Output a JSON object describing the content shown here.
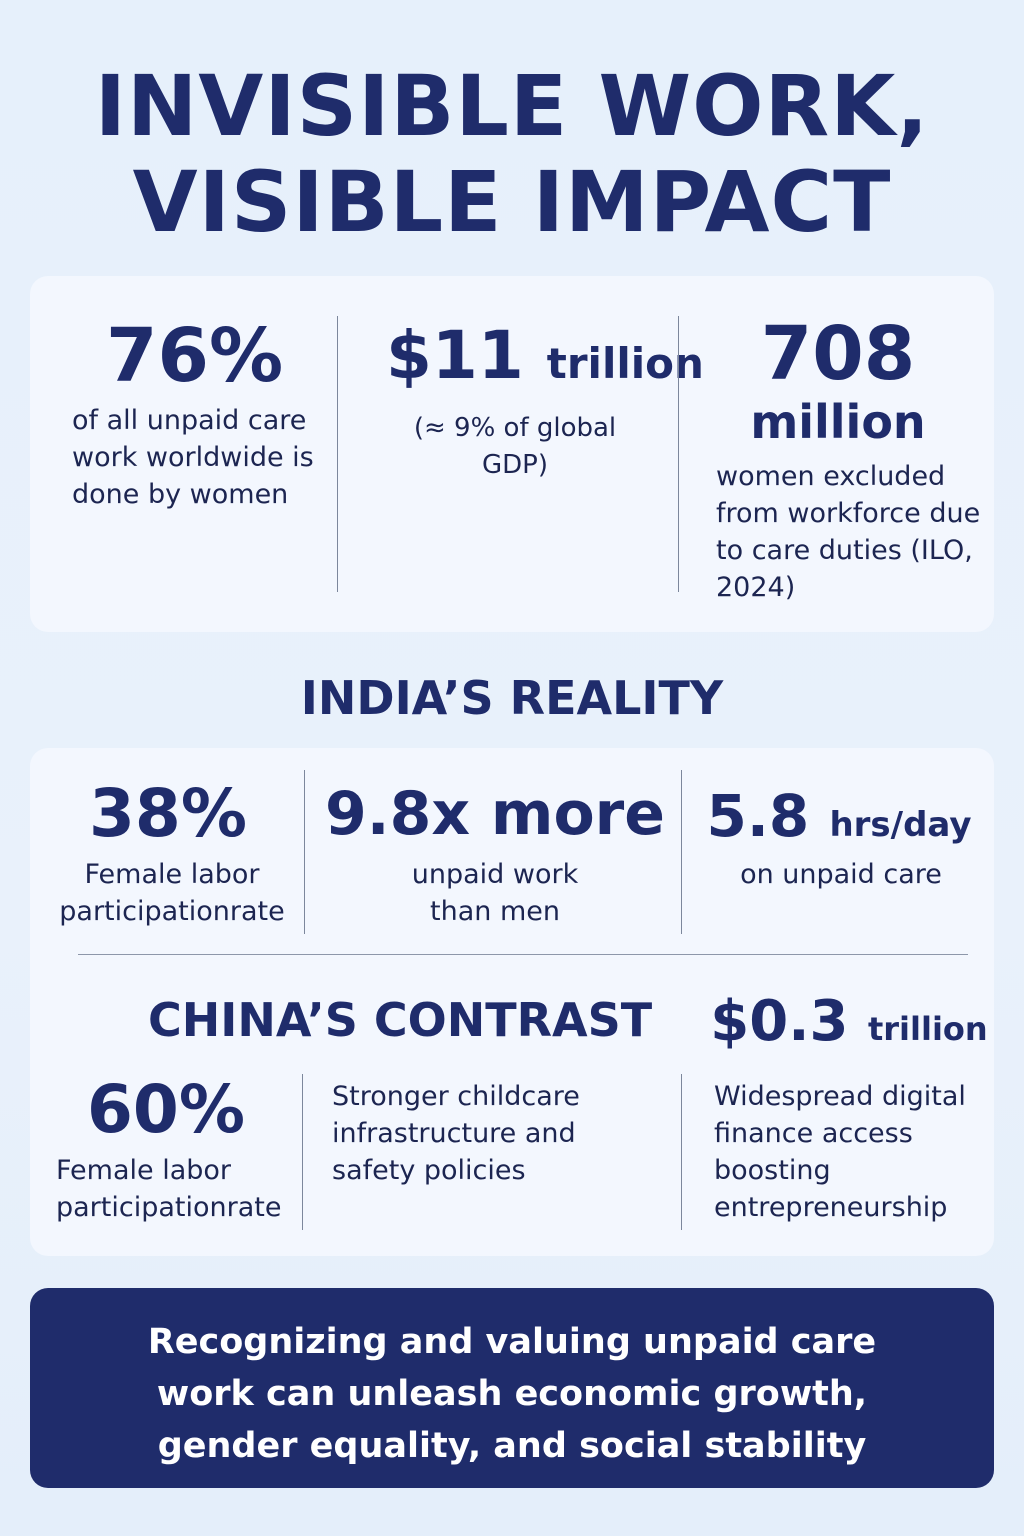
{
  "title": {
    "line1": "INVISIBLE WORK,",
    "line2": "VISIBLE IMPACT"
  },
  "global": {
    "stat1": {
      "value": "76%",
      "desc": "of all unpaid care work worldwide is done by women"
    },
    "stat2": {
      "value": "$11",
      "unit": "trillion",
      "desc": "(≈ 9% of global GDP)"
    },
    "stat3": {
      "value": "708",
      "unit": "million",
      "desc": "women excluded from workforce due to care duties (ILO, 2024)"
    }
  },
  "india": {
    "heading": "INDIA’S REALITY",
    "stat1": {
      "value": "38%",
      "desc": "Female labor participationrate"
    },
    "stat2": {
      "value": "9.8x more",
      "desc": "unpaid work than men"
    },
    "stat3": {
      "value": "5.8",
      "unit": "hrs/day",
      "desc": "on unpaid care"
    }
  },
  "china": {
    "heading": "CHINA’S CONTRAST",
    "stat1": {
      "value": "60%",
      "desc": "Female labor participationrate"
    },
    "stat2": {
      "desc": "Stronger childcare infrastructure and safety policies"
    },
    "stat3": {
      "value": "$0.3",
      "unit": "trillion",
      "desc": "Widespread digital finance access boosting entrepreneurship"
    }
  },
  "banner": {
    "text": "Recognizing and valuing unpaid care work can unleash economic growth, gender equality, and social stability"
  },
  "colors": {
    "navy": "#1f2c6b",
    "background": "#e7f0fb",
    "card": "#f4f8fe"
  }
}
